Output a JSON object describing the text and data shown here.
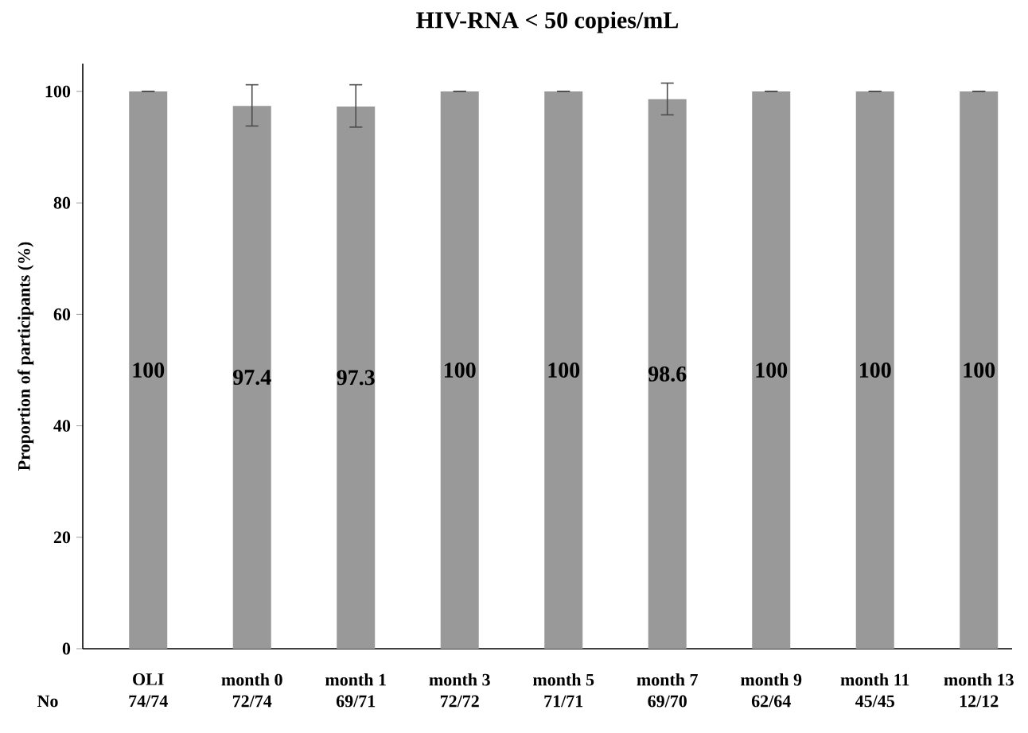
{
  "chart_data": {
    "type": "bar",
    "title": "HIV-RNA < 50 copies/mL",
    "ylabel": "Proportion of participants (%)",
    "categories": [
      "OLI",
      "month 0",
      "month 1",
      "month 3",
      "month 5",
      "month 7",
      "month 9",
      "month 11",
      "month 13"
    ],
    "values": [
      100,
      97.4,
      97.3,
      100,
      100,
      98.6,
      100,
      100,
      100
    ],
    "errors": [
      0,
      [
        93.8,
        101.2
      ],
      [
        93.6,
        101.2
      ],
      0,
      0,
      [
        95.8,
        101.5
      ],
      0,
      0,
      0
    ],
    "color": "#999999",
    "data_labels": true,
    "ylim": [
      0,
      105
    ],
    "yticks": [
      0,
      20,
      40,
      60,
      80,
      100
    ],
    "annotations": [
      "No",
      "74/74",
      "72/74",
      "69/71",
      "72/72",
      "71/71",
      "69/70",
      "62/64",
      "45/45",
      "12/12"
    ]
  }
}
